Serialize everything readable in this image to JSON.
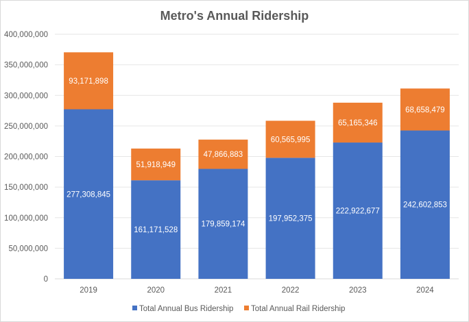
{
  "chart_data": {
    "type": "bar",
    "stacked": true,
    "title": "Metro's Annual Ridership",
    "xlabel": "",
    "ylabel": "",
    "categories": [
      "2019",
      "2020",
      "2021",
      "2022",
      "2023",
      "2024"
    ],
    "series": [
      {
        "name": "Total Annual Bus Ridership",
        "color": "#4472c4",
        "values": [
          277308845,
          161171528,
          179859174,
          197952375,
          222922677,
          242602853
        ],
        "labels": [
          "277,308,845",
          "161,171,528",
          "179,859,174",
          "197,952,375",
          "222,922,677",
          "242,602,853"
        ]
      },
      {
        "name": "Total Annual Rail Ridership",
        "color": "#ed7d31",
        "values": [
          93171898,
          51918949,
          47866883,
          60565995,
          65165346,
          68658479
        ],
        "labels": [
          "93,171,898",
          "51,918,949",
          "47,866,883",
          "60,565,995",
          "65,165,346",
          "68,658,479"
        ]
      }
    ],
    "ylim": [
      0,
      400000000
    ],
    "yticks": [
      0,
      50000000,
      100000000,
      150000000,
      200000000,
      250000000,
      300000000,
      350000000,
      400000000
    ],
    "ytick_labels": [
      "0",
      "50,000,000",
      "100,000,000",
      "150,000,000",
      "200,000,000",
      "250,000,000",
      "300,000,000",
      "350,000,000",
      "400,000,000"
    ],
    "grid": true,
    "legend": "bottom"
  }
}
